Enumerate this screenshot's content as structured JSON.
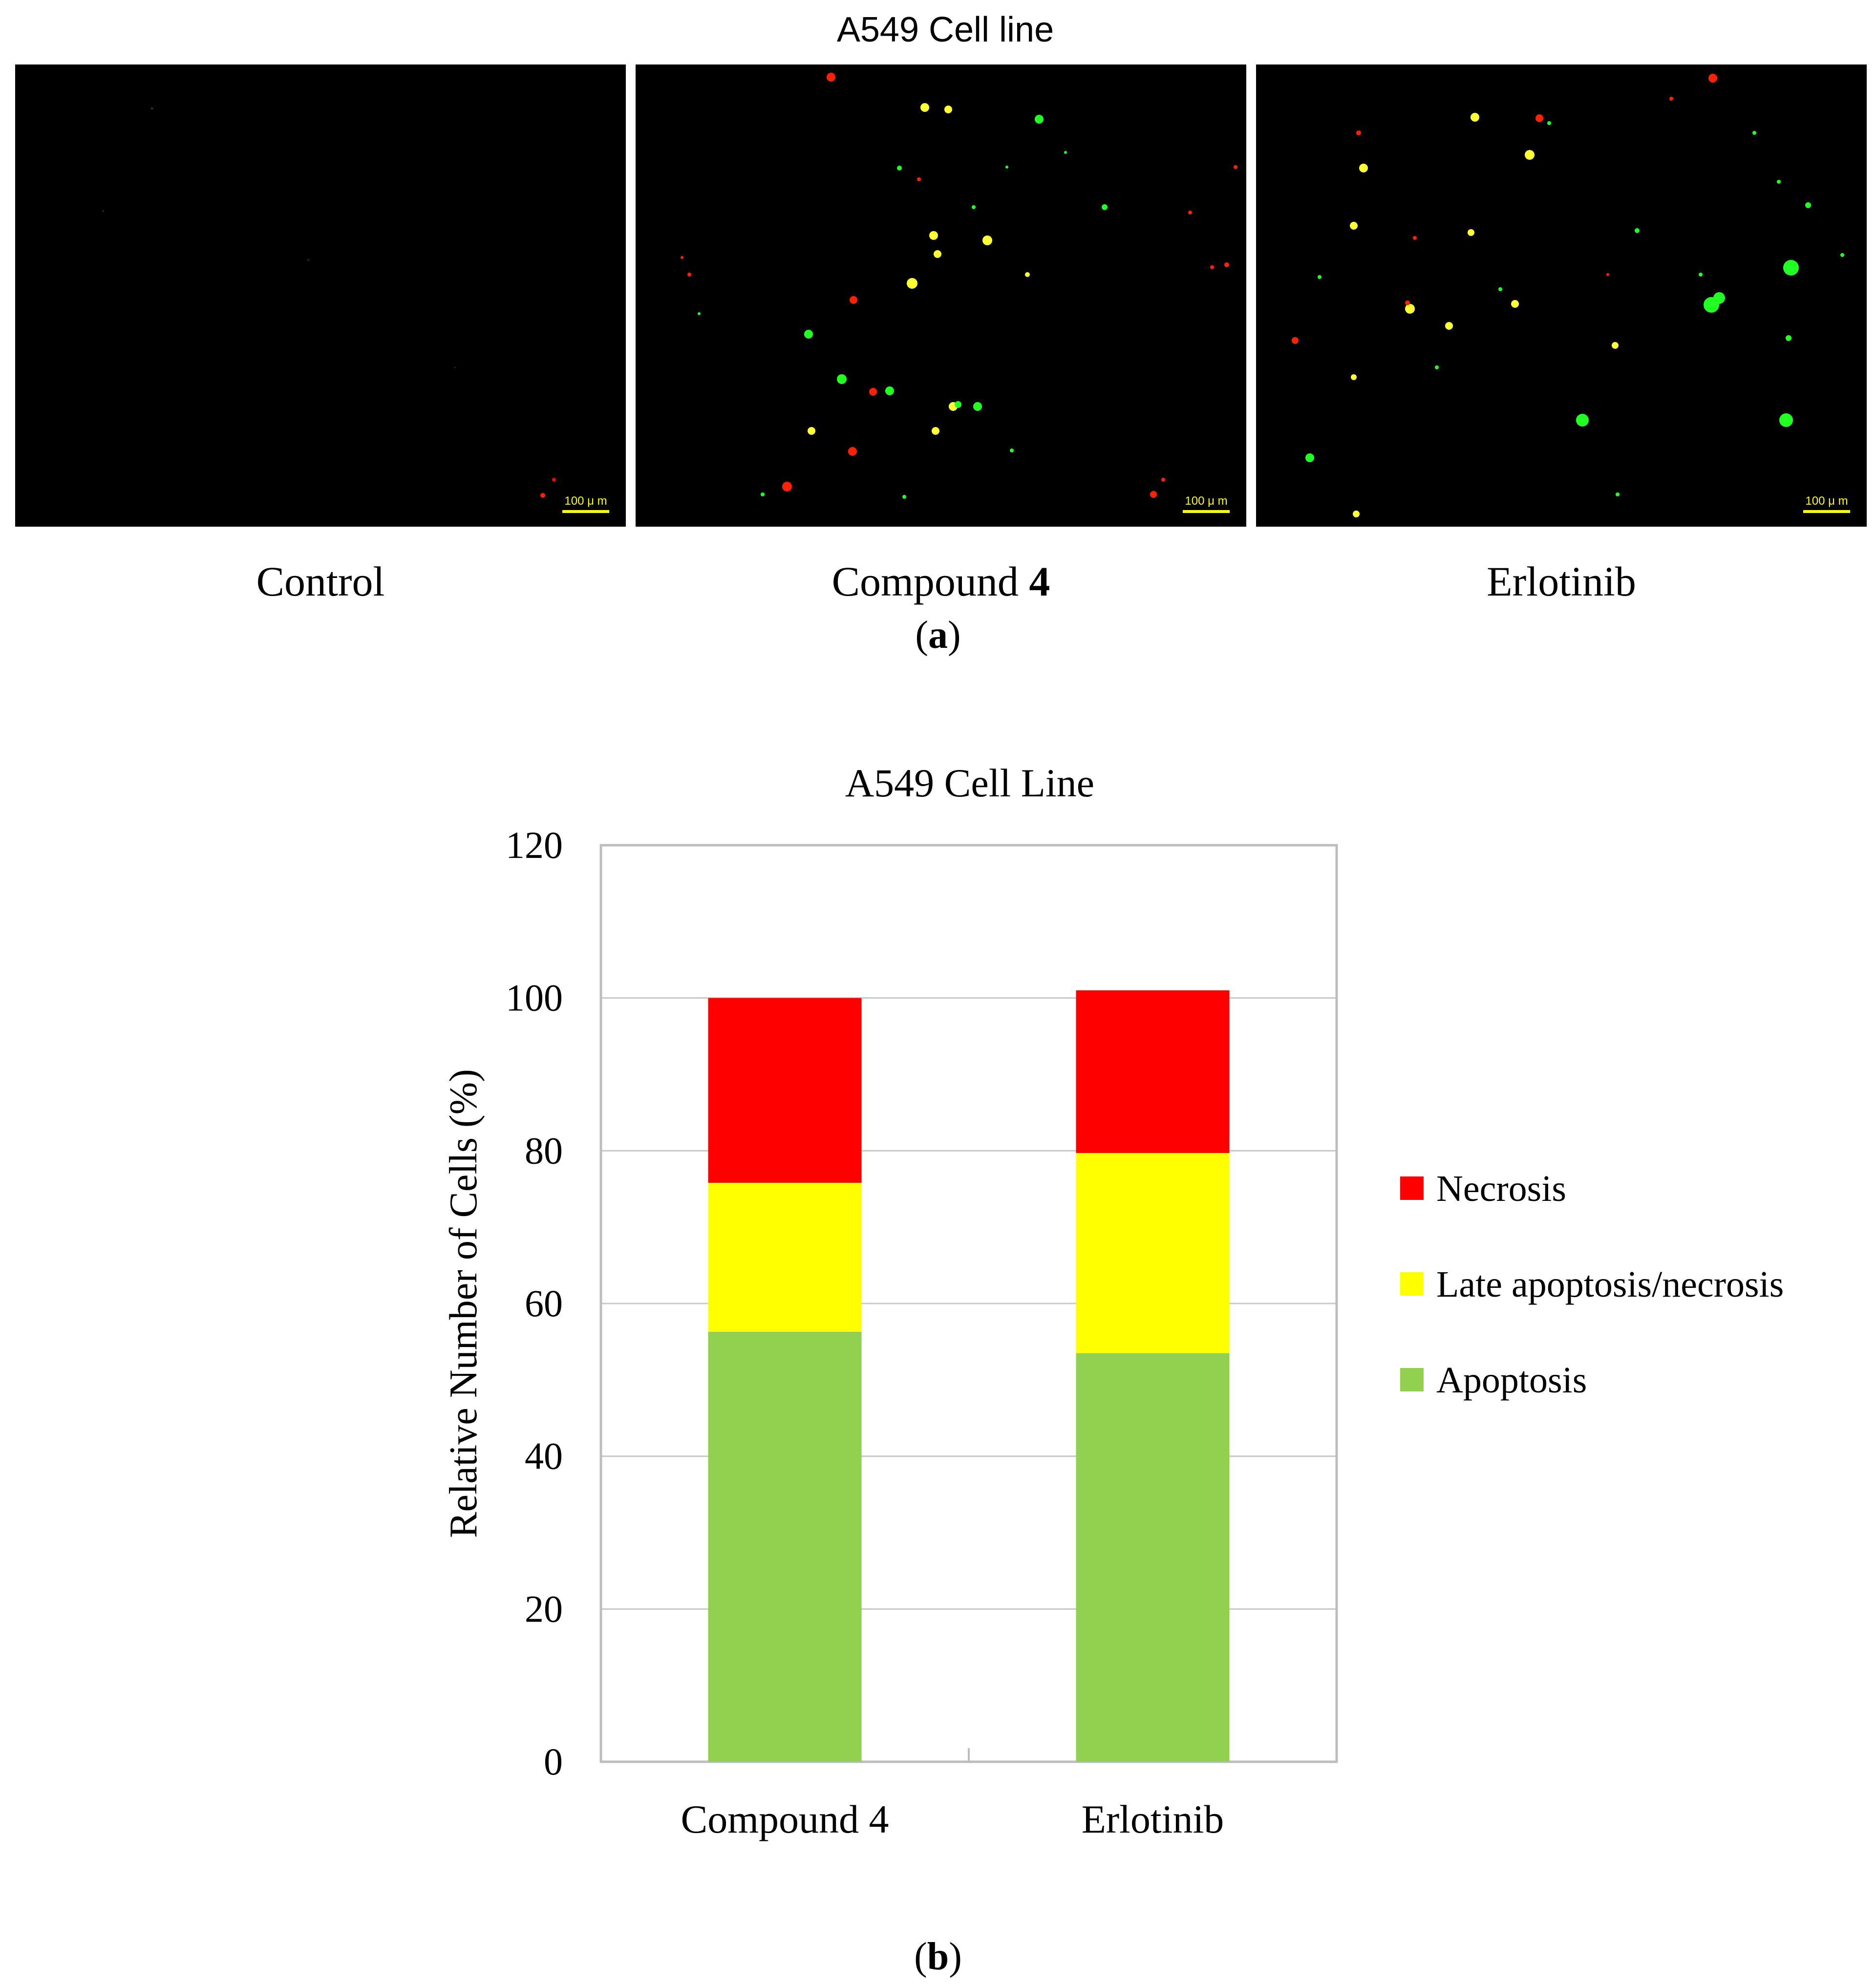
{
  "figure_a": {
    "title": "A549 Cell line",
    "panels": [
      {
        "label": "Control",
        "bold_suffix": "",
        "scale_bar": "100 μ m"
      },
      {
        "label": "Compound ",
        "bold_suffix": "4",
        "scale_bar": "100 μ m"
      },
      {
        "label": "Erlotinib",
        "bold_suffix": "",
        "scale_bar": "100 μ m"
      }
    ],
    "sublabel_open": "(",
    "sublabel_letter": "a",
    "sublabel_close": ")"
  },
  "figure_b": {
    "sublabel_open": "(",
    "sublabel_letter": "b",
    "sublabel_close": ")"
  },
  "chart_data": {
    "type": "bar",
    "stacked": true,
    "title": "A549 Cell Line",
    "xlabel": "",
    "ylabel": "Relative Number of Cells (%)",
    "categories": [
      "Compound 4",
      "Erlotinib"
    ],
    "ylim": [
      0,
      120
    ],
    "yticks": [
      0,
      20,
      40,
      60,
      80,
      100,
      120
    ],
    "grid": true,
    "legend_position": "right",
    "series": [
      {
        "name": "Apoptosis",
        "values": [
          56.3,
          53.5
        ],
        "color": "#92d050"
      },
      {
        "name": "Late apoptosis/necrosis",
        "values": [
          19.5,
          26.2
        ],
        "color": "#ffff00"
      },
      {
        "name": "Necrosis",
        "values": [
          24.2,
          21.3
        ],
        "color": "#ff0000"
      }
    ]
  }
}
